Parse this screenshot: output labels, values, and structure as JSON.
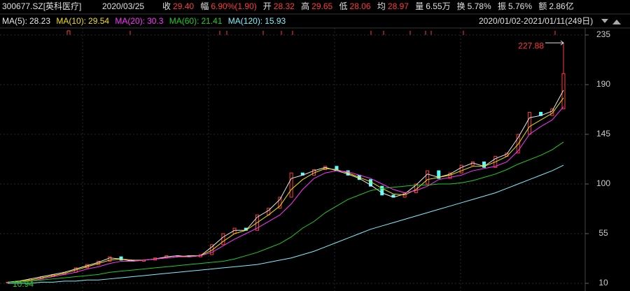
{
  "header": {
    "code": "300677.SZ[英科医疗]",
    "date": "2020/03/25",
    "items": [
      {
        "label": "收",
        "value": "29.40",
        "color": "#ff3b3b"
      },
      {
        "label": "幅",
        "value": "6.90%(1.90)",
        "color": "#ff3b3b"
      },
      {
        "label": "开",
        "value": "28.32",
        "color": "#ff3b3b"
      },
      {
        "label": "高",
        "value": "29.65",
        "color": "#ff3b3b"
      },
      {
        "label": "低",
        "value": "28.06",
        "color": "#ff3b3b"
      },
      {
        "label": "均",
        "value": "28.97",
        "color": "#ff3b3b"
      },
      {
        "label": "量",
        "value": "6.55万",
        "color": "#e0e0e0"
      },
      {
        "label": "换",
        "value": "5.78%",
        "color": "#e0e0e0"
      },
      {
        "label": "振",
        "value": "5.76%",
        "color": "#e0e0e0"
      },
      {
        "label": "额",
        "value": "2.86亿",
        "color": "#e0e0e0"
      }
    ],
    "range": "2020/01/02-2021/01/11(249日)"
  },
  "chart_data": {
    "type": "candlestick",
    "categories": [
      null,
      null,
      null,
      null,
      null,
      null,
      null,
      null,
      null,
      null,
      null,
      null,
      null,
      null,
      null,
      null,
      null,
      null,
      null,
      null,
      null,
      null,
      null,
      null,
      null,
      null,
      null,
      null,
      null,
      null,
      null,
      null,
      null,
      null,
      null,
      null,
      null,
      null,
      null,
      null,
      null,
      null,
      null,
      null,
      null,
      null,
      null,
      null,
      null,
      null
    ],
    "values": [
      11,
      12,
      14,
      16,
      18,
      20,
      24,
      27,
      30,
      34,
      31,
      30,
      31,
      33,
      35,
      35,
      34,
      36,
      45,
      55,
      60,
      58,
      72,
      78,
      88,
      110,
      108,
      113,
      116,
      112,
      108,
      104,
      98,
      90,
      88,
      92,
      100,
      112,
      105,
      110,
      117,
      120,
      115,
      125,
      128,
      145,
      165,
      162,
      168,
      200
    ],
    "up_color": "#ff3b3b",
    "down_color": "#54ffff",
    "series": [
      {
        "name": "MA(5):",
        "last": 28.23,
        "color": "#e8e8e8",
        "values": [
          11,
          12,
          14,
          16,
          18,
          20,
          23,
          26,
          29,
          33,
          32,
          30,
          31,
          32,
          34,
          35,
          34,
          35,
          43,
          52,
          58,
          58,
          70,
          76,
          86,
          105,
          108,
          112,
          115,
          112,
          109,
          105,
          99,
          92,
          88,
          91,
          99,
          109,
          106,
          109,
          115,
          119,
          116,
          123,
          127,
          142,
          160,
          162,
          166,
          185
        ]
      },
      {
        "name": "MA(10):",
        "last": 29.54,
        "color": "#f0e000",
        "values": [
          11,
          12,
          13,
          15,
          17,
          19,
          22,
          25,
          28,
          31,
          32,
          31,
          31,
          32,
          33,
          34,
          35,
          35,
          40,
          48,
          55,
          58,
          65,
          72,
          80,
          95,
          104,
          110,
          114,
          113,
          110,
          106,
          102,
          96,
          91,
          90,
          95,
          104,
          106,
          108,
          112,
          116,
          116,
          120,
          125,
          136,
          152,
          158,
          164,
          178
        ]
      },
      {
        "name": "MA(20):",
        "last": 30.3,
        "color": "#ff33ff",
        "values": [
          11,
          11,
          12,
          14,
          16,
          18,
          20,
          23,
          25,
          28,
          30,
          30,
          31,
          32,
          33,
          34,
          34,
          35,
          38,
          44,
          50,
          55,
          60,
          66,
          72,
          82,
          95,
          105,
          110,
          112,
          111,
          108,
          105,
          100,
          95,
          92,
          94,
          98,
          104,
          106,
          108,
          112,
          114,
          116,
          120,
          130,
          145,
          152,
          158,
          170
        ]
      },
      {
        "name": "MA(60):",
        "last": 21.41,
        "color": "#22cc22",
        "values": [
          11,
          11,
          12,
          13,
          14,
          15,
          16,
          17,
          18,
          20,
          21,
          22,
          23,
          24,
          25,
          26,
          27,
          28,
          29,
          30,
          32,
          35,
          38,
          42,
          46,
          52,
          60,
          66,
          74,
          80,
          86,
          90,
          94,
          96,
          97,
          98,
          99,
          99,
          100,
          100,
          101,
          103,
          106,
          109,
          113,
          118,
          122,
          126,
          131,
          138
        ]
      },
      {
        "name": "MA(120):",
        "last": 15.93,
        "color": "#7ff0ff",
        "values": [
          10,
          10,
          10,
          11,
          11,
          12,
          12,
          13,
          13,
          14,
          15,
          16,
          17,
          18,
          19,
          20,
          21,
          22,
          23,
          24,
          25,
          26,
          27,
          29,
          31,
          33,
          36,
          39,
          43,
          47,
          51,
          55,
          59,
          62,
          65,
          68,
          71,
          74,
          77,
          80,
          83,
          86,
          89,
          92,
          96,
          100,
          104,
          108,
          112,
          117
        ]
      }
    ],
    "ylim": [
      10,
      235
    ],
    "yticks": [
      10,
      55,
      100,
      145,
      190,
      235
    ],
    "grid": true,
    "max_label": 227.88,
    "min_label": 10.94
  }
}
